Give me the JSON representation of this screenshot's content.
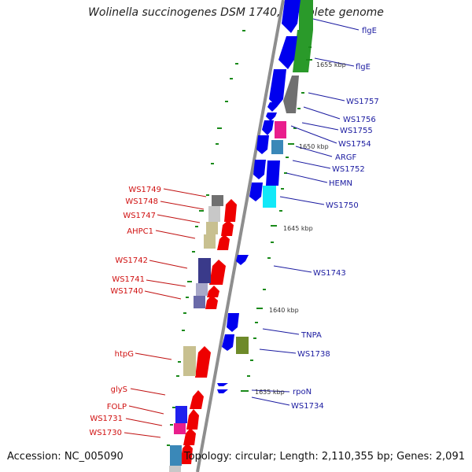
{
  "title": "Wolinella succinogenes DSM 1740, complete genome",
  "accession": "Accession: NC_005090",
  "summary": "Topology: circular; Length: 2,110,355 bp; Genes: 2,091",
  "colors": {
    "backbone": "#8c8c8c",
    "forward": "#0000ee",
    "reverse": "#ee0000",
    "tick": "#1a8a1a",
    "scale_text": "#333333"
  },
  "scale_labels": [
    "1655 kbp",
    "1650 kbp",
    "1645 kbp",
    "1640 kbp",
    "1635 kbp"
  ],
  "right_labels": [
    "flgE",
    "flgE",
    "WS1757",
    "WS1756",
    "WS1755",
    "WS1754",
    "ARGF",
    "WS1752",
    "HEMN",
    "WS1750",
    "WS1743",
    "TNPA",
    "WS1738",
    "rpoN",
    "WS1734"
  ],
  "left_labels": [
    "WS1749",
    "WS1748",
    "WS1747",
    "AHPC1",
    "WS1742",
    "WS1741",
    "WS1740",
    "htpG",
    "glyS",
    "FOLP",
    "WS1731",
    "WS1730"
  ]
}
